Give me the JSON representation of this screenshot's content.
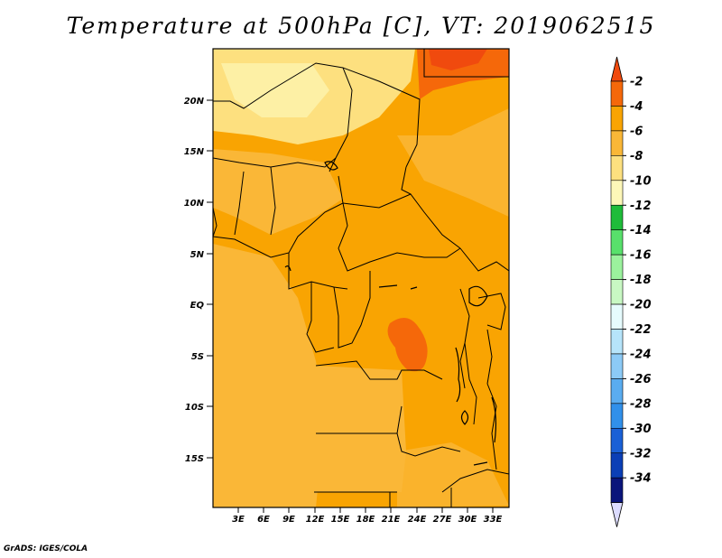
{
  "title": "Temperature at 500hPa [C], VT: 2019062515",
  "credit": "GrADS: IGES/COLA",
  "map": {
    "lat_ticks": [
      "20N",
      "15N",
      "10N",
      "5N",
      "EQ",
      "5S",
      "10S",
      "15S"
    ],
    "lon_ticks": [
      "3E",
      "6E",
      "9E",
      "12E",
      "15E",
      "18E",
      "21E",
      "24E",
      "27E",
      "30E",
      "33E"
    ]
  },
  "colorbar": {
    "levels": [
      "-2",
      "-4",
      "-6",
      "-8",
      "-10",
      "-12",
      "-14",
      "-16",
      "-18",
      "-20",
      "-22",
      "-24",
      "-26",
      "-28",
      "-30",
      "-32",
      "-34"
    ],
    "colors": [
      "#f04a0e",
      "#f5680a",
      "#f9a402",
      "#fab737",
      "#fde07f",
      "#fdf7b8",
      "#1fbc3a",
      "#58e06b",
      "#9bf29d",
      "#c8f8c3",
      "#e6fbfd",
      "#b6e4fa",
      "#8ccaf6",
      "#5aacf0",
      "#3190ea",
      "#1a60d6",
      "#0b3fb6",
      "#0a157b",
      "#dcdcff"
    ]
  }
}
